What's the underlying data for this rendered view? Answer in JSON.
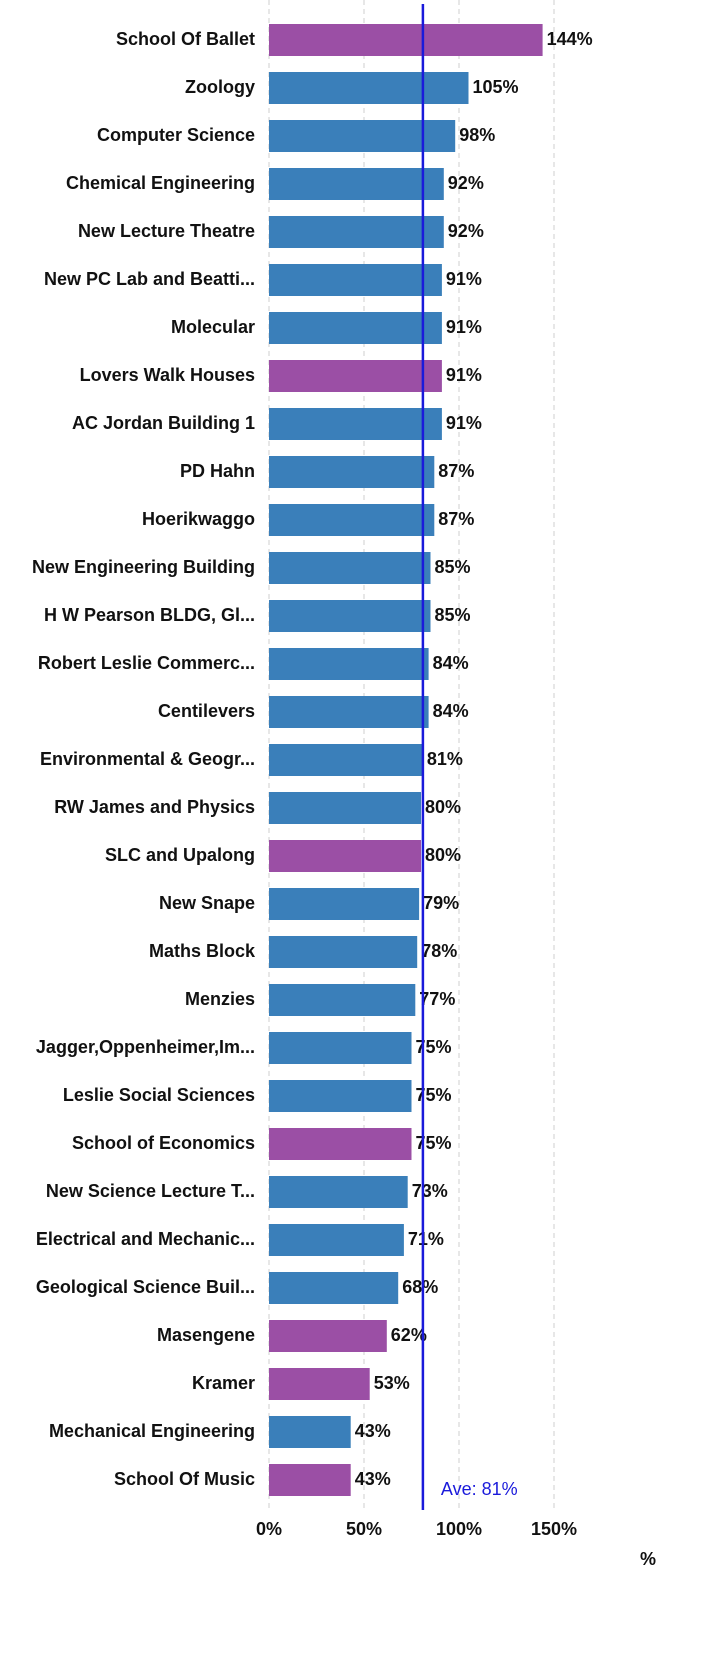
{
  "chart_data": {
    "type": "hbar",
    "categories": [
      "School Of Ballet",
      "Zoology",
      "Computer Science",
      "Chemical Engineering",
      "New Lecture Theatre",
      "New PC Lab and Beatti...",
      "Molecular",
      "Lovers Walk Houses",
      "AC Jordan Building 1",
      "PD Hahn",
      "Hoerikwaggo",
      "New Engineering Building",
      "H W Pearson BLDG, Gl...",
      "Robert Leslie Commerc...",
      "Centilevers",
      "Environmental & Geogr...",
      "RW James and Physics",
      "SLC and Upalong",
      "New Snape",
      "Maths Block",
      "Menzies",
      "Jagger,Oppenheimer,Im...",
      "Leslie Social Sciences",
      "School of Economics",
      "New Science Lecture T...",
      "Electrical and Mechanic...",
      "Geological Science Buil...",
      "Masengene",
      "Kramer",
      "Mechanical Engineering",
      "School Of Music"
    ],
    "values": [
      144,
      105,
      98,
      92,
      92,
      91,
      91,
      91,
      91,
      87,
      87,
      85,
      85,
      84,
      84,
      81,
      80,
      80,
      79,
      78,
      77,
      75,
      75,
      75,
      73,
      71,
      68,
      62,
      53,
      43,
      43
    ],
    "value_labels": [
      "144%",
      "105%",
      "98%",
      "92%",
      "92%",
      "91%",
      "91%",
      "91%",
      "91%",
      "87%",
      "87%",
      "85%",
      "85%",
      "84%",
      "84%",
      "81%",
      "80%",
      "80%",
      "79%",
      "78%",
      "77%",
      "75%",
      "75%",
      "75%",
      "73%",
      "71%",
      "68%",
      "62%",
      "53%",
      "43%",
      "43%"
    ],
    "colors": [
      "#9b4fa5",
      "#3a7fba",
      "#3a7fba",
      "#3a7fba",
      "#3a7fba",
      "#3a7fba",
      "#3a7fba",
      "#9b4fa5",
      "#3a7fba",
      "#3a7fba",
      "#3a7fba",
      "#3a7fba",
      "#3a7fba",
      "#3a7fba",
      "#3a7fba",
      "#3a7fba",
      "#3a7fba",
      "#9b4fa5",
      "#3a7fba",
      "#3a7fba",
      "#3a7fba",
      "#3a7fba",
      "#3a7fba",
      "#9b4fa5",
      "#3a7fba",
      "#3a7fba",
      "#3a7fba",
      "#9b4fa5",
      "#9b4fa5",
      "#3a7fba",
      "#9b4fa5"
    ],
    "xlim": [
      0,
      160
    ],
    "xticks": [
      {
        "value": 0,
        "label": "0%"
      },
      {
        "value": 50,
        "label": "50%"
      },
      {
        "value": 100,
        "label": "100%"
      },
      {
        "value": 150,
        "label": "150%"
      }
    ],
    "xlabel": "%",
    "grid": true,
    "reference_line": {
      "value": 81,
      "label": "Ave: 81%",
      "color": "#1a1adb"
    }
  }
}
